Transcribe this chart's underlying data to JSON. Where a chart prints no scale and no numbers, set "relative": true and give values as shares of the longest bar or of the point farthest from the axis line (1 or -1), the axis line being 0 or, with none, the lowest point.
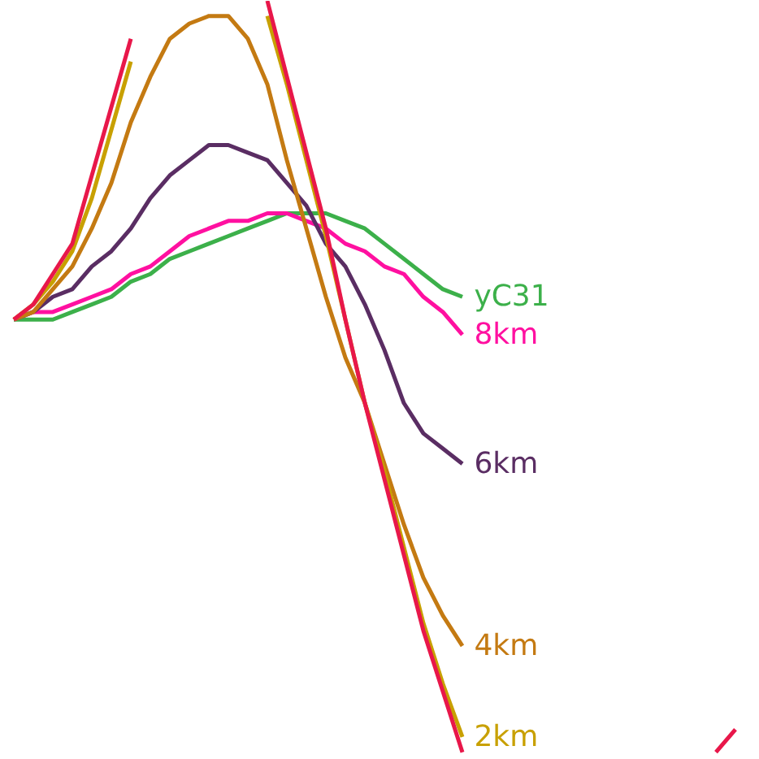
{
  "chart_data": {
    "type": "line",
    "relative": true,
    "categories": [
      null,
      null,
      null,
      null,
      null,
      null,
      null,
      null,
      null,
      null,
      null,
      null,
      null,
      null,
      null,
      null,
      null,
      null,
      null,
      null,
      null,
      null,
      null,
      null,
      null,
      null,
      null,
      null,
      null,
      null,
      null,
      null,
      null,
      null,
      null,
      null,
      null,
      null
    ],
    "series": [
      {
        "name": "yC31",
        "color": "#3cb04a",
        "values": [
          0.58,
          0.58,
          0.58,
          0.59,
          0.6,
          0.61,
          0.63,
          0.64,
          0.66,
          0.67,
          0.68,
          0.69,
          0.7,
          0.71,
          0.72,
          0.72,
          0.72,
          0.71,
          0.7,
          0.68,
          0.66,
          0.64,
          0.62,
          0.61,
          null,
          null,
          null,
          null,
          null,
          null,
          null,
          null,
          null,
          null,
          null,
          null,
          null,
          null
        ]
      },
      {
        "name": "8km",
        "color": "#ff10a0",
        "values": [
          0.58,
          0.59,
          0.59,
          0.6,
          0.61,
          0.62,
          0.64,
          0.65,
          0.67,
          0.69,
          0.7,
          0.71,
          0.71,
          0.72,
          0.72,
          0.71,
          0.7,
          0.68,
          0.67,
          0.65,
          0.64,
          0.61,
          0.59,
          0.56,
          null,
          null,
          null,
          null,
          null,
          null,
          null,
          null,
          null,
          null,
          null,
          null,
          null,
          null
        ]
      },
      {
        "name": "6km",
        "color": "#5a2d63",
        "values": [
          0.58,
          0.59,
          0.61,
          0.62,
          0.65,
          0.67,
          0.7,
          0.74,
          0.77,
          0.79,
          0.81,
          0.81,
          0.8,
          0.79,
          0.76,
          0.73,
          0.68,
          0.65,
          0.6,
          0.54,
          0.47,
          0.43,
          0.41,
          0.39,
          null,
          null,
          null,
          null,
          null,
          null,
          null,
          null,
          null,
          null,
          null,
          null,
          null,
          null
        ]
      },
      {
        "name": "4km",
        "color": "#c47a12",
        "values": [
          0.58,
          0.59,
          0.62,
          0.65,
          0.7,
          0.76,
          0.84,
          0.9,
          0.95,
          0.97,
          0.98,
          0.98,
          0.95,
          0.89,
          0.79,
          0.7,
          0.61,
          0.53,
          0.47,
          0.39,
          0.31,
          0.24,
          0.19,
          0.15,
          null,
          null,
          null,
          null,
          null,
          null,
          null,
          null,
          null,
          null,
          null,
          null,
          null,
          null
        ]
      },
      {
        "name": "2km",
        "color": "#c8a000",
        "values": [
          0.58,
          0.6,
          0.63,
          0.67,
          0.74,
          0.83,
          0.92,
          null,
          null,
          null,
          null,
          null,
          null,
          0.98,
          0.89,
          0.79,
          0.69,
          0.58,
          0.47,
          0.38,
          0.28,
          0.18,
          0.1,
          0.03,
          null,
          null,
          null,
          null,
          null,
          null,
          null,
          null,
          null,
          null,
          null,
          null,
          null,
          null
        ]
      },
      {
        "color": "#e8174a",
        "values": [
          0.58,
          0.6,
          0.64,
          0.68,
          0.77,
          0.86,
          0.95,
          null,
          null,
          null,
          null,
          null,
          null,
          1.0,
          0.9,
          0.8,
          0.7,
          0.58,
          0.47,
          0.37,
          0.27,
          0.17,
          0.09,
          0.01,
          null,
          null,
          null,
          null,
          null,
          null,
          null,
          null,
          null,
          null,
          null,
          null,
          0.01,
          0.04
        ]
      }
    ]
  }
}
